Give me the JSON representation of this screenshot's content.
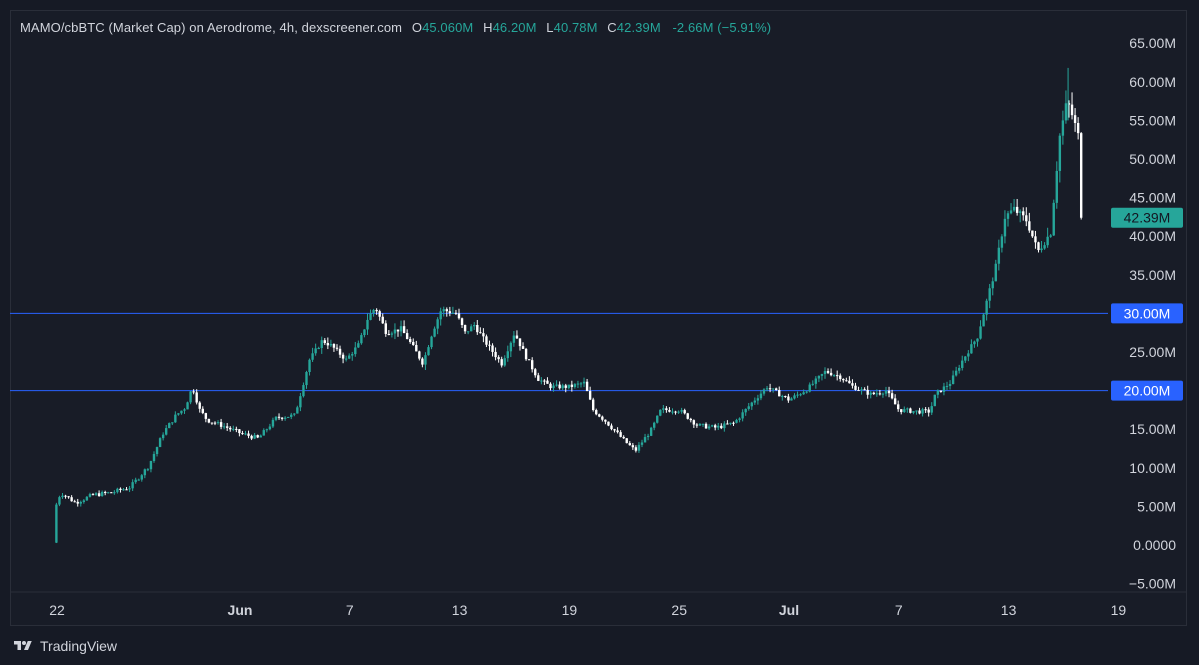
{
  "header": {
    "symbol": "MAMO/cbBTC (Market Cap) on Aerodrome, 4h, dexscreener.com",
    "o_label": "O",
    "o_value": "45.060M",
    "h_label": "H",
    "h_value": "46.20M",
    "l_label": "L",
    "l_value": "40.78M",
    "c_label": "C",
    "c_value": "42.39M",
    "change": "-2.66M (−5.91%)"
  },
  "footer": {
    "brand": "TradingView",
    "logo_icon": "tradingview-logo-icon"
  },
  "colors": {
    "background": "#181c27",
    "up": "#26a69a",
    "down": "#ffffff",
    "hline": "#2962ff",
    "price_tag": "#26a69a",
    "axis_text": "#d1d4dc"
  },
  "chart_data": {
    "type": "candlestick",
    "interval": "4h",
    "y_ticks": [
      "65.00M",
      "60.00M",
      "55.00M",
      "50.00M",
      "45.00M",
      "40.00M",
      "35.00M",
      "30.00M",
      "25.00M",
      "20.00M",
      "15.00M",
      "10.00M",
      "5.00M",
      "0.0000",
      "−5.00M"
    ],
    "x_ticks": [
      {
        "label": "22",
        "day": 22
      },
      {
        "label": "Jun",
        "day": 32
      },
      {
        "label": "7",
        "day": 38
      },
      {
        "label": "13",
        "day": 44
      },
      {
        "label": "19",
        "day": 50
      },
      {
        "label": "25",
        "day": 56
      },
      {
        "label": "Jul",
        "day": 62
      },
      {
        "label": "7",
        "day": 68
      },
      {
        "label": "13",
        "day": 74
      },
      {
        "label": "19",
        "day": 80
      }
    ],
    "y_range": [
      -7,
      68
    ],
    "x_range_days": [
      20.9,
      80.0
    ],
    "horizontal_lines": [
      {
        "value": 30,
        "label": "30.00M"
      },
      {
        "value": 20,
        "label": "20.00M"
      }
    ],
    "last_price": {
      "value": 42.39,
      "label": "42.39M"
    },
    "close_path": [
      [
        21.8,
        0.3
      ],
      [
        21.9,
        4.8
      ],
      [
        22.2,
        6.8
      ],
      [
        23.0,
        5.5
      ],
      [
        24.0,
        6.5
      ],
      [
        25.0,
        6.8
      ],
      [
        26.0,
        7.5
      ],
      [
        27.0,
        10.2
      ],
      [
        27.8,
        14.5
      ],
      [
        28.5,
        16.8
      ],
      [
        29.0,
        17.8
      ],
      [
        29.4,
        20.5
      ],
      [
        29.8,
        17.5
      ],
      [
        30.2,
        16.2
      ],
      [
        31.0,
        15.5
      ],
      [
        32.0,
        14.5
      ],
      [
        33.0,
        13.8
      ],
      [
        34.0,
        16.5
      ],
      [
        35.0,
        16.8
      ],
      [
        35.8,
        24.0
      ],
      [
        36.5,
        26.5
      ],
      [
        37.0,
        25.8
      ],
      [
        37.8,
        24.0
      ],
      [
        38.5,
        26.0
      ],
      [
        39.0,
        29.5
      ],
      [
        39.4,
        30.8
      ],
      [
        40.0,
        27.5
      ],
      [
        40.8,
        28.0
      ],
      [
        41.5,
        25.5
      ],
      [
        42.0,
        23.5
      ],
      [
        42.5,
        27.5
      ],
      [
        43.0,
        30.5
      ],
      [
        43.8,
        30.0
      ],
      [
        44.3,
        27.5
      ],
      [
        44.8,
        28.5
      ],
      [
        45.5,
        26.0
      ],
      [
        46.3,
        23.5
      ],
      [
        47.0,
        27.5
      ],
      [
        47.6,
        24.5
      ],
      [
        48.3,
        21.5
      ],
      [
        49.0,
        20.5
      ],
      [
        50.0,
        20.5
      ],
      [
        50.8,
        21.0
      ],
      [
        51.3,
        17.5
      ],
      [
        52.0,
        16.0
      ],
      [
        53.0,
        13.5
      ],
      [
        53.6,
        12.2
      ],
      [
        54.5,
        15.0
      ],
      [
        55.0,
        17.5
      ],
      [
        56.0,
        17.5
      ],
      [
        57.0,
        15.5
      ],
      [
        58.0,
        15.2
      ],
      [
        59.0,
        15.8
      ],
      [
        60.0,
        18.5
      ],
      [
        60.8,
        20.5
      ],
      [
        61.5,
        19.5
      ],
      [
        62.0,
        18.8
      ],
      [
        63.0,
        20.2
      ],
      [
        64.0,
        22.5
      ],
      [
        64.8,
        21.8
      ],
      [
        65.5,
        20.5
      ],
      [
        66.5,
        19.5
      ],
      [
        67.3,
        20.0
      ],
      [
        68.0,
        17.5
      ],
      [
        69.0,
        17.3
      ],
      [
        69.7,
        17.3
      ],
      [
        70.0,
        19.5
      ],
      [
        70.8,
        21.0
      ],
      [
        71.5,
        24.0
      ],
      [
        72.3,
        27.0
      ],
      [
        72.8,
        31.5
      ],
      [
        73.3,
        36.0
      ],
      [
        73.8,
        42.5
      ],
      [
        74.3,
        43.5
      ],
      [
        75.0,
        42.0
      ],
      [
        75.6,
        38.0
      ],
      [
        76.3,
        40.5
      ],
      [
        76.8,
        53.0
      ],
      [
        77.2,
        57.5
      ],
      [
        77.5,
        55.5
      ],
      [
        77.8,
        53.0
      ],
      [
        78.0,
        45.0
      ],
      [
        78.1,
        42.39
      ]
    ]
  }
}
